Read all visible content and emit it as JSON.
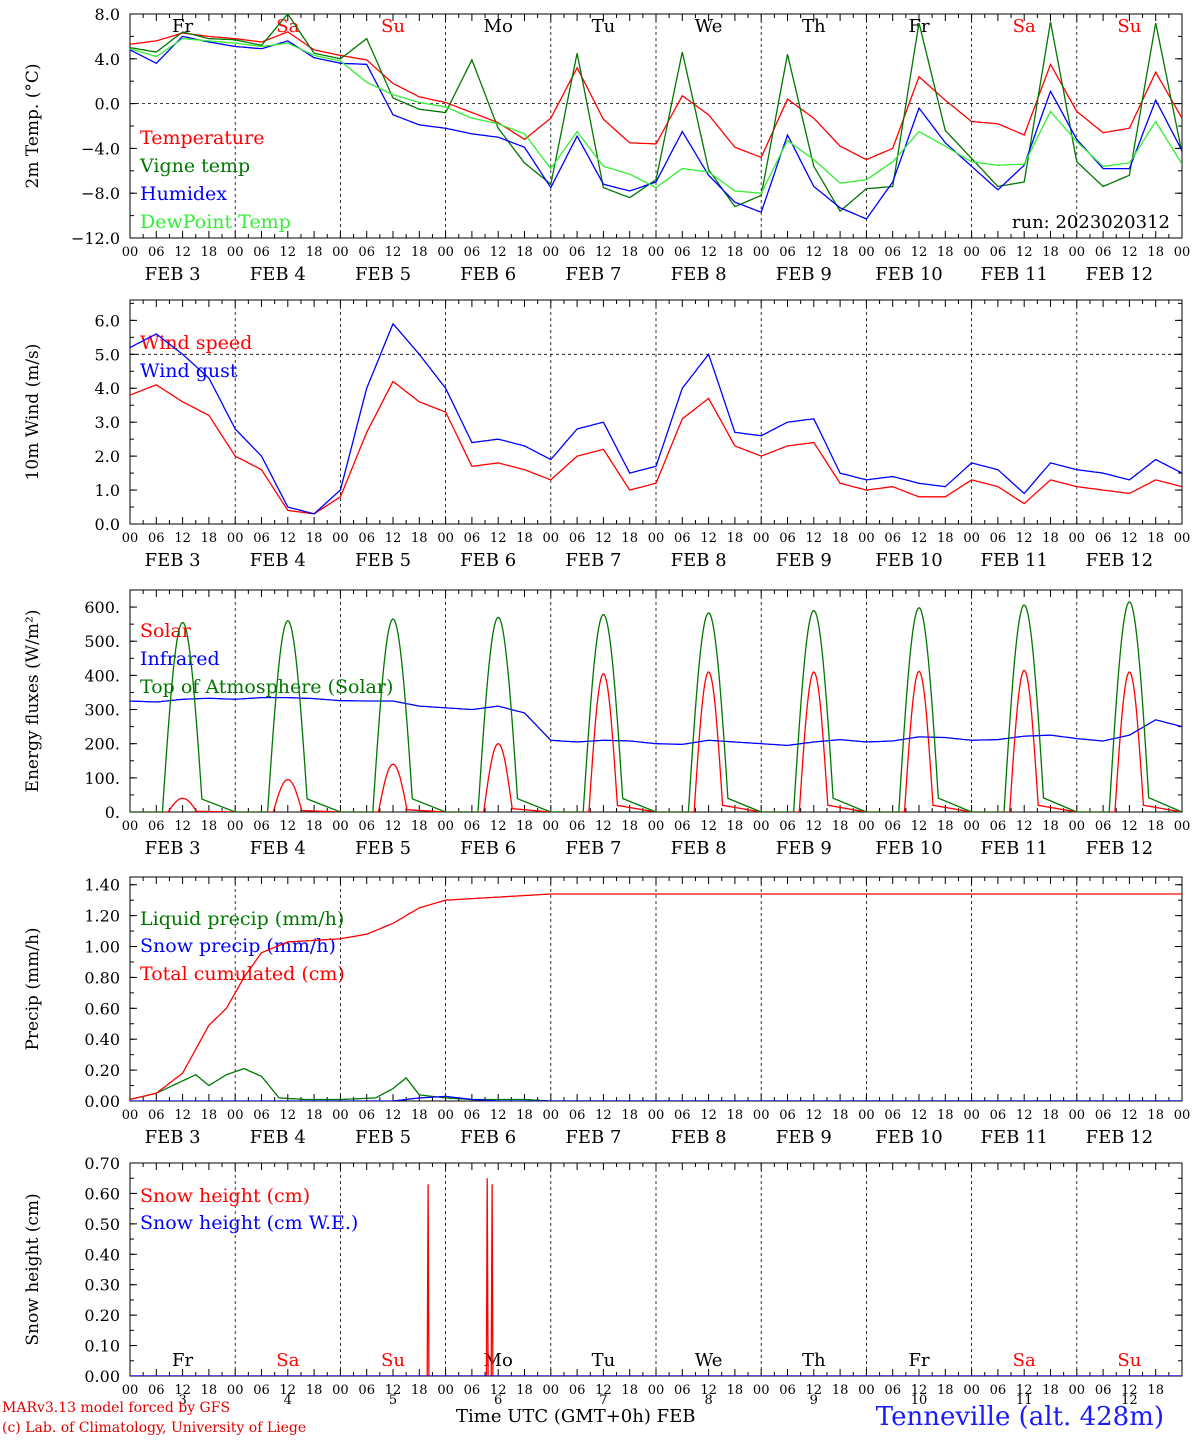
{
  "colors": {
    "red": "#ff0000",
    "green": "#007700",
    "blue": "#0000ff",
    "lightgreen": "#33ee33",
    "sat_sun": "#ff0000",
    "weekday": "#000000"
  },
  "days": [
    "Fr",
    "Sa",
    "Su",
    "Mo",
    "Tu",
    "We",
    "Th",
    "Fr",
    "Sa",
    "Su"
  ],
  "day_is_weekend": [
    false,
    true,
    true,
    false,
    false,
    false,
    false,
    false,
    true,
    true
  ],
  "date_labels": [
    "FEB 3",
    "FEB 4",
    "FEB 5",
    "FEB 6",
    "FEB 7",
    "FEB 8",
    "FEB 9",
    "FEB 10",
    "FEB 11",
    "FEB 12"
  ],
  "date_numbers": [
    "3",
    "4",
    "5",
    "6",
    "7",
    "8",
    "9",
    "10",
    "11",
    "12"
  ],
  "hour_ticks": [
    "00",
    "06",
    "12",
    "18"
  ],
  "last_hour_tick": "00",
  "run_label": "run: 2023020312",
  "credits": {
    "line1": "MARv3.13 model forced by GFS",
    "line2": "(c) Lab. of Climatology, University of Liege"
  },
  "station": "Tenneville (alt. 428m)",
  "x_axis_title": "Time UTC (GMT+0h) FEB",
  "chart_data": [
    {
      "type": "line",
      "ylabel": "2m Temp. (°C)",
      "ylim": [
        -12,
        8
      ],
      "yticks": [
        "8.0",
        "4.0",
        "0.0",
        "−4.0",
        "−8.0",
        "−12.0"
      ],
      "ytick_values": [
        8,
        4,
        0,
        -4,
        -8,
        -12
      ],
      "dashed_y": [
        0
      ],
      "x_units": "hours since Feb 3 00 UTC",
      "series": [
        {
          "name": "Temperature",
          "color": "red",
          "x": [
            0,
            6,
            12,
            18,
            24,
            30,
            36,
            42,
            48,
            54,
            60,
            66,
            72,
            78,
            84,
            90,
            96,
            102,
            108,
            114,
            120,
            126,
            132,
            138,
            144,
            150,
            156,
            162,
            168,
            174,
            180,
            186,
            192,
            198,
            204,
            210,
            216,
            222,
            228,
            234,
            240
          ],
          "y": [
            5.3,
            5.6,
            6.3,
            6.0,
            5.8,
            5.5,
            6.4,
            4.8,
            4.3,
            3.9,
            1.8,
            0.6,
            0.1,
            -0.8,
            -1.7,
            -3.2,
            -1.3,
            3.2,
            -1.4,
            -3.5,
            -3.6,
            0.7,
            -1.0,
            -3.9,
            -4.8,
            0.4,
            -1.3,
            -3.8,
            -5.0,
            -4.0,
            2.4,
            0.3,
            -1.6,
            -1.8,
            -2.8,
            3.5,
            -0.7,
            -2.6,
            -2.2,
            2.8,
            -1.3
          ]
        },
        {
          "name": "Vigne temp",
          "color": "green",
          "x": [
            0,
            6,
            12,
            18,
            24,
            30,
            36,
            42,
            48,
            54,
            60,
            66,
            72,
            78,
            84,
            90,
            96,
            102,
            108,
            114,
            120,
            126,
            132,
            138,
            144,
            150,
            156,
            162,
            168,
            174,
            180,
            186,
            192,
            198,
            204,
            210,
            216,
            222,
            228,
            234,
            240
          ],
          "y": [
            5.0,
            4.6,
            6.4,
            5.8,
            5.7,
            5.2,
            8.0,
            4.5,
            4.0,
            5.8,
            0.5,
            -0.5,
            -0.8,
            3.9,
            -2.2,
            -5.3,
            -7.2,
            4.5,
            -7.5,
            -8.4,
            -6.8,
            4.6,
            -5.9,
            -9.2,
            -8.2,
            4.4,
            -5.6,
            -9.6,
            -7.6,
            -7.4,
            7.2,
            -2.4,
            -4.9,
            -7.4,
            -7.0,
            7.3,
            -5.2,
            -7.4,
            -6.4,
            7.2,
            -4.4
          ]
        },
        {
          "name": "Humidex",
          "color": "blue",
          "x": [
            0,
            6,
            12,
            18,
            24,
            30,
            36,
            42,
            48,
            54,
            60,
            66,
            72,
            78,
            84,
            90,
            96,
            102,
            108,
            114,
            120,
            126,
            132,
            138,
            144,
            150,
            156,
            162,
            168,
            174,
            180,
            186,
            192,
            198,
            204,
            210,
            216,
            222,
            228,
            234,
            240
          ],
          "y": [
            4.8,
            3.6,
            6.0,
            5.5,
            5.1,
            4.9,
            5.6,
            4.1,
            3.6,
            3.5,
            -1.0,
            -1.9,
            -2.2,
            -2.7,
            -3.0,
            -3.9,
            -7.5,
            -2.9,
            -7.2,
            -7.8,
            -7.0,
            -2.5,
            -6.4,
            -8.8,
            -9.7,
            -2.8,
            -7.4,
            -9.3,
            -10.3,
            -7.0,
            -0.4,
            -3.5,
            -5.6,
            -7.7,
            -5.5,
            1.1,
            -3.2,
            -5.8,
            -5.8,
            0.3,
            -4.2
          ]
        },
        {
          "name": "DewPoint Temp",
          "color": "lightgreen",
          "x": [
            0,
            6,
            12,
            18,
            24,
            30,
            36,
            42,
            48,
            54,
            60,
            66,
            72,
            78,
            84,
            90,
            96,
            102,
            108,
            114,
            120,
            126,
            132,
            138,
            144,
            150,
            156,
            162,
            168,
            174,
            180,
            186,
            192,
            198,
            204,
            210,
            216,
            222,
            228,
            234,
            240
          ],
          "y": [
            4.9,
            4.2,
            5.8,
            5.6,
            5.4,
            5.1,
            5.4,
            4.3,
            3.8,
            1.9,
            0.8,
            0.1,
            -0.3,
            -1.3,
            -1.8,
            -2.7,
            -5.8,
            -2.5,
            -5.6,
            -6.3,
            -7.5,
            -5.8,
            -6.1,
            -7.8,
            -8.0,
            -3.3,
            -5.0,
            -7.1,
            -6.8,
            -5.2,
            -2.5,
            -3.8,
            -5.2,
            -5.5,
            -5.4,
            -0.7,
            -3.4,
            -5.6,
            -5.3,
            -1.6,
            -5.4
          ]
        }
      ]
    },
    {
      "type": "line",
      "ylabel": "10m Wind (m/s)",
      "ylim": [
        0,
        6.6
      ],
      "yticks": [
        "6.0",
        "5.0",
        "4.0",
        "3.0",
        "2.0",
        "1.0",
        "0.0"
      ],
      "ytick_values": [
        6,
        5,
        4,
        3,
        2,
        1,
        0
      ],
      "dashed_y": [
        5
      ],
      "x_units": "hours since Feb 3 00 UTC",
      "series": [
        {
          "name": "Wind speed",
          "color": "red",
          "x": [
            0,
            6,
            12,
            18,
            24,
            30,
            36,
            42,
            48,
            54,
            60,
            66,
            72,
            78,
            84,
            90,
            96,
            102,
            108,
            114,
            120,
            126,
            132,
            138,
            144,
            150,
            156,
            162,
            168,
            174,
            180,
            186,
            192,
            198,
            204,
            210,
            216,
            222,
            228,
            234,
            240
          ],
          "y": [
            3.8,
            4.1,
            3.6,
            3.2,
            2.0,
            1.6,
            0.4,
            0.3,
            0.8,
            2.7,
            4.2,
            3.6,
            3.3,
            1.7,
            1.8,
            1.6,
            1.3,
            2.0,
            2.2,
            1.0,
            1.2,
            3.1,
            3.7,
            2.3,
            2.0,
            2.3,
            2.4,
            1.2,
            1.0,
            1.1,
            0.8,
            0.8,
            1.3,
            1.1,
            0.6,
            1.3,
            1.1,
            1.0,
            0.9,
            1.3,
            1.1
          ]
        },
        {
          "name": "Wind gust",
          "color": "blue",
          "x": [
            0,
            6,
            12,
            18,
            24,
            30,
            36,
            42,
            48,
            54,
            60,
            66,
            72,
            78,
            84,
            90,
            96,
            102,
            108,
            114,
            120,
            126,
            132,
            138,
            144,
            150,
            156,
            162,
            168,
            174,
            180,
            186,
            192,
            198,
            204,
            210,
            216,
            222,
            228,
            234,
            240
          ],
          "y": [
            5.2,
            5.6,
            5.0,
            4.3,
            2.8,
            2.0,
            0.5,
            0.3,
            1.0,
            4.0,
            5.9,
            5.0,
            4.0,
            2.4,
            2.5,
            2.3,
            1.9,
            2.8,
            3.0,
            1.5,
            1.7,
            4.0,
            5.0,
            2.7,
            2.6,
            3.0,
            3.1,
            1.5,
            1.3,
            1.4,
            1.2,
            1.1,
            1.8,
            1.6,
            0.9,
            1.8,
            1.6,
            1.5,
            1.3,
            1.9,
            1.5
          ]
        }
      ]
    },
    {
      "type": "line",
      "ylabel": "Energy fluxes (W/m²)",
      "ylim": [
        0,
        650
      ],
      "yticks": [
        "600.",
        "500.",
        "400.",
        "300.",
        "200.",
        "100.",
        "0."
      ],
      "ytick_values": [
        600,
        500,
        400,
        300,
        200,
        100,
        0
      ],
      "x_units": "hours since Feb 3 00 UTC",
      "toa_peaks": [
        555,
        560,
        565,
        570,
        578,
        583,
        590,
        598,
        606,
        615
      ],
      "solar_peaks": [
        40,
        95,
        140,
        200,
        405,
        410,
        410,
        412,
        415,
        410
      ],
      "series": [
        {
          "name": "Solar",
          "color": "red",
          "derived": "diurnal"
        },
        {
          "name": "Infrared",
          "color": "blue",
          "x": [
            0,
            6,
            12,
            18,
            24,
            30,
            36,
            42,
            48,
            54,
            60,
            66,
            72,
            78,
            84,
            90,
            96,
            102,
            108,
            114,
            120,
            126,
            132,
            138,
            144,
            150,
            156,
            162,
            168,
            174,
            180,
            186,
            192,
            198,
            204,
            210,
            216,
            222,
            228,
            234,
            240
          ],
          "y": [
            325,
            322,
            330,
            333,
            330,
            335,
            335,
            332,
            326,
            325,
            325,
            310,
            305,
            300,
            310,
            290,
            210,
            205,
            210,
            208,
            200,
            198,
            210,
            205,
            200,
            195,
            205,
            212,
            205,
            208,
            220,
            218,
            210,
            212,
            222,
            225,
            215,
            208,
            225,
            270,
            250
          ]
        },
        {
          "name": "Top of Atmosphere (Solar)",
          "color": "green",
          "derived": "diurnal"
        }
      ]
    },
    {
      "type": "line",
      "ylabel": "Precip (mm/h)",
      "ylim": [
        0,
        1.45
      ],
      "yticks": [
        "1.40",
        "1.20",
        "1.00",
        "0.80",
        "0.60",
        "0.40",
        "0.20",
        "0.00"
      ],
      "ytick_values": [
        1.4,
        1.2,
        1.0,
        0.8,
        0.6,
        0.4,
        0.2,
        0.0
      ],
      "x_units": "hours since Feb 3 00 UTC",
      "series": [
        {
          "name": "Liquid precip (mm/h)",
          "color": "green",
          "x": [
            0,
            6,
            12,
            15,
            18,
            22,
            26,
            30,
            34,
            40,
            48,
            56,
            60,
            63,
            66,
            72,
            78,
            84,
            90,
            96,
            240
          ],
          "y": [
            0.01,
            0.05,
            0.13,
            0.17,
            0.1,
            0.17,
            0.21,
            0.16,
            0.02,
            0.01,
            0.01,
            0.02,
            0.08,
            0.15,
            0.04,
            0.02,
            0.01,
            0.01,
            0.01,
            0.0,
            0.0
          ]
        },
        {
          "name": "Snow precip (mm/h)",
          "color": "blue",
          "x": [
            0,
            60,
            66,
            72,
            78,
            84,
            240
          ],
          "y": [
            0.0,
            0.0,
            0.02,
            0.03,
            0.01,
            0.0,
            0.0
          ]
        },
        {
          "name": "Total cumulated (cm)",
          "color": "red",
          "x": [
            0,
            6,
            12,
            18,
            22,
            26,
            30,
            36,
            42,
            48,
            54,
            60,
            66,
            72,
            78,
            84,
            90,
            96,
            240
          ],
          "y": [
            0.01,
            0.05,
            0.18,
            0.49,
            0.6,
            0.8,
            0.96,
            1.03,
            1.04,
            1.05,
            1.08,
            1.15,
            1.25,
            1.3,
            1.31,
            1.32,
            1.33,
            1.34,
            1.34
          ]
        }
      ]
    },
    {
      "type": "line",
      "ylabel": "Snow height (cm)",
      "ylim": [
        0,
        0.7
      ],
      "yticks": [
        "0.70",
        "0.60",
        "0.50",
        "0.40",
        "0.30",
        "0.20",
        "0.10",
        "0.00"
      ],
      "ytick_values": [
        0.7,
        0.6,
        0.5,
        0.4,
        0.3,
        0.2,
        0.1,
        0.0
      ],
      "x_units": "hours since Feb 3 00 UTC",
      "series": [
        {
          "name": "Snow height (cm)",
          "color": "red",
          "spikes": [
            {
              "x": 68.0,
              "y": 0.63
            },
            {
              "x": 81.5,
              "y": 0.65
            },
            {
              "x": 82.6,
              "y": 0.63
            }
          ]
        },
        {
          "name": "Snow height (cm W.E.)",
          "color": "blue",
          "x": [
            0,
            240
          ],
          "y": [
            0.0,
            0.0
          ]
        }
      ]
    }
  ]
}
